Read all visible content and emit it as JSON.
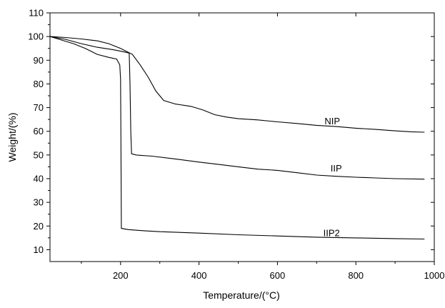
{
  "chart_data": {
    "type": "line",
    "title": "",
    "xlabel": "Temperature/(°C)",
    "ylabel": "Weight/(%)",
    "xlim": [
      20,
      1000
    ],
    "ylim": [
      5,
      110
    ],
    "x_ticks": [
      200,
      400,
      600,
      800,
      1000
    ],
    "y_ticks": [
      10,
      20,
      30,
      40,
      50,
      60,
      70,
      80,
      90,
      100,
      110
    ],
    "grid": false,
    "series": [
      {
        "name": "NIP",
        "label_at": [
          740,
          63
        ],
        "points": [
          [
            20,
            100
          ],
          [
            60,
            99.6
          ],
          [
            100,
            99
          ],
          [
            140,
            98.2
          ],
          [
            170,
            97
          ],
          [
            200,
            95
          ],
          [
            230,
            92.5
          ],
          [
            250,
            88
          ],
          [
            270,
            83
          ],
          [
            290,
            77
          ],
          [
            310,
            73
          ],
          [
            340,
            71.5
          ],
          [
            380,
            70.5
          ],
          [
            410,
            69
          ],
          [
            440,
            67
          ],
          [
            470,
            66
          ],
          [
            500,
            65.3
          ],
          [
            550,
            64.8
          ],
          [
            600,
            64
          ],
          [
            650,
            63.3
          ],
          [
            700,
            62.5
          ],
          [
            750,
            62
          ],
          [
            800,
            61.3
          ],
          [
            850,
            60.8
          ],
          [
            900,
            60.2
          ],
          [
            940,
            59.8
          ],
          [
            975,
            59.6
          ]
        ]
      },
      {
        "name": "IIP",
        "label_at": [
          750,
          43
        ],
        "points": [
          [
            20,
            100
          ],
          [
            60,
            98.8
          ],
          [
            100,
            97
          ],
          [
            140,
            95.5
          ],
          [
            180,
            94.5
          ],
          [
            210,
            93.5
          ],
          [
            222,
            93
          ],
          [
            224,
            80
          ],
          [
            226,
            60
          ],
          [
            228,
            50.5
          ],
          [
            240,
            50
          ],
          [
            280,
            49.5
          ],
          [
            330,
            48.5
          ],
          [
            400,
            47
          ],
          [
            450,
            46
          ],
          [
            500,
            45
          ],
          [
            550,
            44
          ],
          [
            600,
            43.5
          ],
          [
            650,
            42.5
          ],
          [
            700,
            41.5
          ],
          [
            750,
            41
          ],
          [
            800,
            40.6
          ],
          [
            850,
            40.3
          ],
          [
            900,
            40
          ],
          [
            975,
            39.8
          ]
        ]
      },
      {
        "name": "IIP2",
        "label_at": [
          738,
          15.7
        ],
        "points": [
          [
            20,
            100
          ],
          [
            50,
            98.5
          ],
          [
            80,
            97
          ],
          [
            110,
            95
          ],
          [
            140,
            92.5
          ],
          [
            170,
            91.2
          ],
          [
            190,
            90.5
          ],
          [
            198,
            88
          ],
          [
            200,
            82
          ],
          [
            201,
            50
          ],
          [
            202,
            19
          ],
          [
            220,
            18.5
          ],
          [
            260,
            18
          ],
          [
            300,
            17.6
          ],
          [
            400,
            17
          ],
          [
            500,
            16.3
          ],
          [
            600,
            15.8
          ],
          [
            700,
            15.3
          ],
          [
            800,
            15
          ],
          [
            900,
            14.7
          ],
          [
            975,
            14.5
          ]
        ]
      }
    ]
  }
}
